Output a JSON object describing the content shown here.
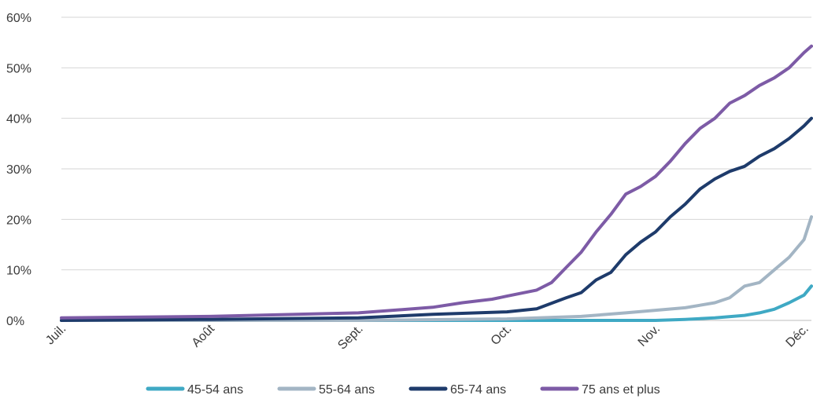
{
  "chart_data": {
    "type": "line",
    "title": "",
    "xlabel": "",
    "ylabel": "",
    "x_ticks": [
      "Juil.",
      "Août",
      "Sept.",
      "Oct.",
      "Nov.",
      "Déc."
    ],
    "y_ticks": [
      "0%",
      "10%",
      "20%",
      "30%",
      "40%",
      "50%",
      "60%"
    ],
    "ylim": [
      0,
      60
    ],
    "grid": "horizontal",
    "legend_position": "bottom",
    "series": [
      {
        "name": "45-54 ans",
        "color": "#3fa9c4",
        "points": [
          [
            0,
            0
          ],
          [
            1,
            0
          ],
          [
            2,
            0
          ],
          [
            3,
            0
          ],
          [
            4,
            0
          ],
          [
            4.2,
            0.2
          ],
          [
            4.4,
            0.5
          ],
          [
            4.6,
            1.0
          ],
          [
            4.7,
            1.5
          ],
          [
            4.8,
            2.2
          ],
          [
            4.9,
            3.5
          ],
          [
            5.0,
            5.0
          ],
          [
            5.05,
            6.8
          ]
        ]
      },
      {
        "name": "55-64 ans",
        "color": "#a3b5c4",
        "points": [
          [
            0,
            0
          ],
          [
            1,
            0
          ],
          [
            2,
            0
          ],
          [
            3,
            0.3
          ],
          [
            3.5,
            0.8
          ],
          [
            3.8,
            1.5
          ],
          [
            4,
            2.0
          ],
          [
            4.2,
            2.5
          ],
          [
            4.4,
            3.5
          ],
          [
            4.5,
            4.5
          ],
          [
            4.6,
            6.8
          ],
          [
            4.7,
            7.5
          ],
          [
            4.8,
            10
          ],
          [
            4.9,
            12.5
          ],
          [
            5.0,
            16
          ],
          [
            5.05,
            20.5
          ]
        ]
      },
      {
        "name": "65-74 ans",
        "color": "#1e3b6b",
        "points": [
          [
            0,
            0
          ],
          [
            1,
            0.2
          ],
          [
            2,
            0.5
          ],
          [
            2.5,
            1.2
          ],
          [
            3,
            1.7
          ],
          [
            3.2,
            2.3
          ],
          [
            3.4,
            4.5
          ],
          [
            3.5,
            5.5
          ],
          [
            3.6,
            8
          ],
          [
            3.7,
            9.5
          ],
          [
            3.8,
            13
          ],
          [
            3.9,
            15.5
          ],
          [
            4,
            17.5
          ],
          [
            4.1,
            20.5
          ],
          [
            4.2,
            23
          ],
          [
            4.3,
            26
          ],
          [
            4.4,
            28
          ],
          [
            4.5,
            29.5
          ],
          [
            4.6,
            30.5
          ],
          [
            4.7,
            32.5
          ],
          [
            4.8,
            34
          ],
          [
            4.9,
            36
          ],
          [
            5.0,
            38.5
          ],
          [
            5.05,
            40
          ]
        ]
      },
      {
        "name": "75 ans et plus",
        "color": "#7d5ba6",
        "points": [
          [
            0,
            0.5
          ],
          [
            1,
            0.8
          ],
          [
            2,
            1.5
          ],
          [
            2.5,
            2.6
          ],
          [
            2.7,
            3.5
          ],
          [
            2.9,
            4.2
          ],
          [
            3,
            4.8
          ],
          [
            3.2,
            6
          ],
          [
            3.3,
            7.5
          ],
          [
            3.4,
            10.5
          ],
          [
            3.5,
            13.5
          ],
          [
            3.6,
            17.5
          ],
          [
            3.7,
            21
          ],
          [
            3.8,
            25
          ],
          [
            3.9,
            26.5
          ],
          [
            4,
            28.5
          ],
          [
            4.1,
            31.5
          ],
          [
            4.2,
            35
          ],
          [
            4.3,
            38
          ],
          [
            4.4,
            40
          ],
          [
            4.5,
            43
          ],
          [
            4.6,
            44.5
          ],
          [
            4.7,
            46.5
          ],
          [
            4.8,
            48
          ],
          [
            4.9,
            50
          ],
          [
            5.0,
            53
          ],
          [
            5.05,
            54.3
          ]
        ]
      }
    ]
  }
}
